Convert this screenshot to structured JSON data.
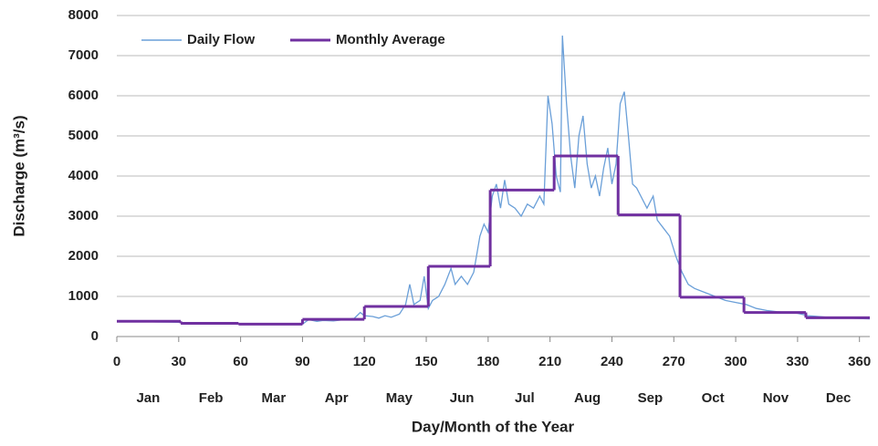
{
  "chart_data": {
    "type": "line",
    "x_label": "Day/Month of the Year",
    "y_label": "Discharge (m³/s)",
    "xlim": [
      0,
      365
    ],
    "xticks": [
      0,
      30,
      60,
      90,
      120,
      150,
      180,
      210,
      240,
      270,
      300,
      330,
      360
    ],
    "ylim": [
      0,
      8000
    ],
    "yticks": [
      0,
      1000,
      2000,
      3000,
      4000,
      5000,
      6000,
      7000,
      8000
    ],
    "grid": true,
    "legend": "top-left",
    "month_labels": [
      "Jan",
      "Feb",
      "Mar",
      "Apr",
      "May",
      "Jun",
      "Jul",
      "Aug",
      "Sep",
      "Oct",
      "Nov",
      "Dec"
    ],
    "series": [
      {
        "name": "Daily Flow",
        "color": "#6a9fd8",
        "style": "line",
        "x": [
          0,
          5,
          10,
          15,
          20,
          25,
          30,
          35,
          40,
          45,
          50,
          55,
          60,
          65,
          70,
          75,
          80,
          85,
          90,
          93,
          97,
          100,
          105,
          110,
          115,
          118,
          120,
          124,
          127,
          130,
          133,
          137,
          140,
          142,
          144,
          147,
          149,
          151,
          153,
          156,
          159,
          162,
          164,
          167,
          170,
          173,
          176,
          178,
          180,
          182,
          184,
          186,
          188,
          190,
          193,
          196,
          199,
          202,
          205,
          207,
          209,
          211,
          213,
          215,
          216,
          218,
          220,
          222,
          224,
          226,
          228,
          230,
          232,
          234,
          236,
          238,
          240,
          242,
          244,
          246,
          248,
          250,
          252,
          254,
          257,
          260,
          262,
          265,
          268,
          271,
          274,
          277,
          280,
          285,
          290,
          295,
          300,
          305,
          310,
          315,
          320,
          325,
          330,
          335,
          340,
          345,
          350,
          355,
          360,
          365
        ],
        "values": [
          380,
          375,
          370,
          370,
          365,
          360,
          355,
          340,
          335,
          330,
          325,
          320,
          315,
          310,
          305,
          305,
          300,
          300,
          310,
          420,
          380,
          400,
          390,
          420,
          450,
          600,
          520,
          500,
          460,
          520,
          480,
          560,
          800,
          1300,
          800,
          900,
          1500,
          700,
          900,
          1000,
          1300,
          1700,
          1300,
          1500,
          1300,
          1600,
          2500,
          2800,
          2600,
          3500,
          3800,
          3200,
          3900,
          3300,
          3200,
          3000,
          3300,
          3200,
          3500,
          3300,
          6000,
          5300,
          4000,
          3600,
          7500,
          5800,
          4500,
          3700,
          5000,
          5500,
          4300,
          3700,
          4000,
          3500,
          4200,
          4700,
          3800,
          4300,
          5800,
          6100,
          5000,
          3800,
          3700,
          3500,
          3200,
          3500,
          2900,
          2700,
          2500,
          2000,
          1600,
          1300,
          1200,
          1100,
          1000,
          900,
          850,
          800,
          700,
          650,
          620,
          600,
          580,
          520,
          500,
          480,
          470,
          460,
          450,
          440
        ]
      },
      {
        "name": "Monthly Average",
        "color": "#7030a0",
        "style": "step",
        "x": [
          0,
          31,
          59,
          90,
          120,
          151,
          181,
          212,
          243,
          273,
          304,
          334
        ],
        "values": [
          380,
          330,
          310,
          430,
          750,
          1750,
          3650,
          4500,
          3030,
          980,
          600,
          470
        ]
      }
    ]
  }
}
